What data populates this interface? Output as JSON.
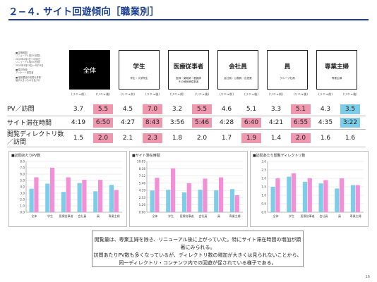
{
  "title": "２−４. サイト回遊傾向［職業別］",
  "notes": [
    "■ 調査期間\nリニューアル前(30日間)\n2013年2月3日〜3月3日\nリニューアル後(30日間)\n2013年3月25日〜4月23日",
    "■ 集計対象\nアンケート回答者",
    "■ 個別要因の影響を排除\n値が大きいものを色づけ"
  ],
  "groups": [
    {
      "name": "全体",
      "sub": ""
    },
    {
      "name": "学生",
      "sub": "学生・大学院生"
    },
    {
      "name": "医療従事者",
      "sub": "医師・薬剤師・看護師\nその他医療従事者"
    },
    {
      "name": "会社員",
      "sub": "会社員・公務員・自営業"
    },
    {
      "name": "員",
      "sub": "グループ社員"
    },
    {
      "name": "専業主婦",
      "sub": "専業主婦"
    }
  ],
  "col_labels": {
    "before": "(リニュ前)",
    "after": "(リニュ後)"
  },
  "rows": [
    {
      "label": "PV／訪問",
      "values": [
        "3.7",
        "5.5",
        "4.5",
        "7.0",
        "3.2",
        "5.5",
        "4.6",
        "5.1",
        "3.3",
        "5.1",
        "4.3",
        "3.5"
      ]
    },
    {
      "label": "サイト滞在時間",
      "values": [
        "4:19",
        "6:50",
        "4:27",
        "8:43",
        "3:56",
        "5:46",
        "4:28",
        "6:40",
        "4:21",
        "6:55",
        "4:35",
        "3:22"
      ]
    },
    {
      "label": "閲覧ディレクトリ数\n／訪問",
      "values": [
        "1.5",
        "2.0",
        "2.1",
        "2.3",
        "1.8",
        "2.0",
        "1.7",
        "1.9",
        "1.4",
        "2.0",
        "1.6",
        "1.6"
      ]
    }
  ],
  "highlight": [
    [
      "",
      "pink",
      "",
      "pink",
      "",
      "pink",
      "",
      "",
      "",
      "pink",
      "",
      "blue"
    ],
    [
      "",
      "pink",
      "",
      "pink",
      "",
      "pink",
      "",
      "pink",
      "",
      "pink",
      "",
      "blue"
    ],
    [
      "",
      "pink",
      "",
      "pink",
      "",
      "",
      "",
      "pink",
      "",
      "pink",
      "",
      ""
    ]
  ],
  "colors": {
    "before": "#7dcde8",
    "after": "#f28fd6",
    "pink_cell": "#ee97ae",
    "blue_cell": "#7dcde8",
    "title": "#1b3f8f"
  },
  "chart_data": [
    {
      "type": "bar",
      "title": "■訪問あたりPV数",
      "categories": [
        "全体",
        "学生",
        "医療従事者",
        "会社員",
        "員",
        "専業主婦"
      ],
      "series": [
        {
          "values": [
            3.7,
            4.5,
            3.2,
            4.6,
            3.3,
            4.3
          ]
        },
        {
          "values": [
            5.5,
            7.0,
            5.5,
            5.1,
            5.1,
            3.5
          ]
        }
      ],
      "yticks": [
        "0.0",
        "1.0",
        "2.0",
        "3.0",
        "4.0",
        "5.0",
        "6.0",
        "7.0",
        "8.0"
      ],
      "ylim": [
        0,
        8
      ]
    },
    {
      "type": "bar",
      "title": "■サイト滞在時間",
      "categories": [
        "全体",
        "学生",
        "医療従事者",
        "会社員",
        "員",
        "専業主婦"
      ],
      "series": [
        {
          "values": [
            259,
            267,
            236,
            268,
            261,
            275
          ]
        },
        {
          "values": [
            410,
            523,
            346,
            400,
            415,
            202
          ]
        }
      ],
      "yticks": [
        "0:00",
        "1:26",
        "2:53",
        "4:19",
        "5:46",
        "7:12",
        "8:38",
        "10:05"
      ],
      "ylim": [
        0,
        605
      ]
    },
    {
      "type": "bar",
      "title": "■訪問あたり閲覧ディレクトリ数",
      "categories": [
        "全体",
        "学生",
        "医療従事者",
        "会社員",
        "員",
        "専業主婦"
      ],
      "series": [
        {
          "values": [
            1.5,
            2.1,
            1.8,
            1.7,
            1.4,
            1.6
          ]
        },
        {
          "values": [
            2.0,
            2.3,
            2.0,
            1.9,
            2.0,
            1.6
          ]
        }
      ],
      "yticks": [
        "0.0",
        "0.5",
        "1.0",
        "1.5",
        "2.0",
        "2.5",
        "3.0"
      ],
      "ylim": [
        0,
        3
      ]
    }
  ],
  "summary": [
    "閲覧量は、専業主婦を除き、リニューアル後に上がっていた。特にサイト滞在時間の増加が顕著にみられる。",
    "訪問あたりPV数も多くなっているが、ディレクトリ数の増加が大きくは見られないことから、",
    "同一ディレクトリ・コンテンツ内での回遊が促されている様子である。"
  ],
  "page_number": "16"
}
